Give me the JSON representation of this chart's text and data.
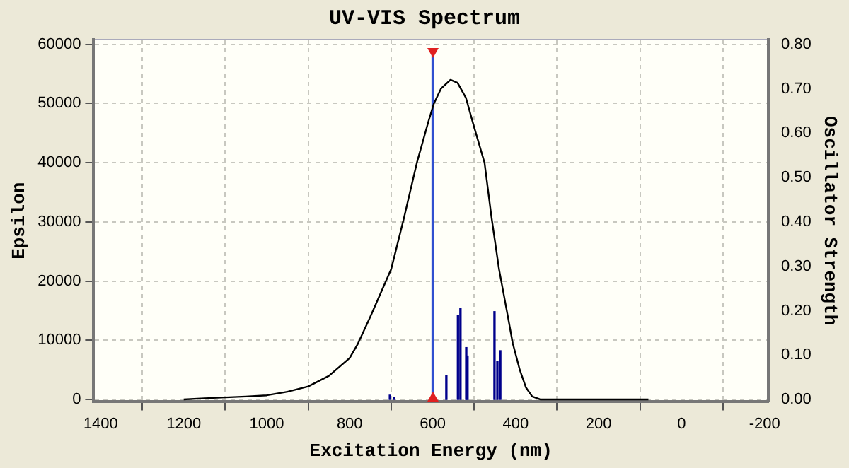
{
  "chart_data": {
    "type": "line",
    "title": "UV-VIS Spectrum",
    "xlabel": "Excitation Energy (nm)",
    "ylabel": "Epsilon",
    "y2label": "Oscillator Strength",
    "xlim": [
      1417,
      -209
    ],
    "xticks": [
      1400,
      1200,
      1000,
      800,
      600,
      400,
      200,
      0,
      -200
    ],
    "ylim": [
      -400,
      60800
    ],
    "yticks": [
      0,
      10000,
      20000,
      30000,
      40000,
      50000,
      60000
    ],
    "y2lim": [
      -0.0053,
      0.8107
    ],
    "y2ticks": [
      {
        "value": 0,
        "label": "0.00"
      },
      {
        "value": 0.1,
        "label": "0.10"
      },
      {
        "value": 0.2,
        "label": "0.20"
      },
      {
        "value": 0.3,
        "label": "0.30"
      },
      {
        "value": 0.4,
        "label": "0.40"
      },
      {
        "value": 0.5,
        "label": "0.50"
      },
      {
        "value": 0.6,
        "label": "0.60"
      },
      {
        "value": 0.7,
        "label": "0.70"
      },
      {
        "value": 0.8,
        "label": "0.80"
      }
    ],
    "grid": true,
    "legend": false,
    "marker": "none",
    "line_style": "solid",
    "series": [
      {
        "color": "#000000",
        "x": [
          1200,
          1150,
          1050,
          1000,
          950,
          900,
          850,
          800,
          781,
          750,
          700,
          669,
          638,
          610,
          597,
          580,
          557,
          540,
          520,
          500,
          475,
          458,
          440,
          420,
          407,
          390,
          375,
          360,
          340,
          80
        ],
        "values": [
          0,
          200,
          500,
          700,
          1300,
          2200,
          4000,
          7000,
          9300,
          14000,
          22000,
          30700,
          40000,
          47000,
          50000,
          52500,
          54000,
          53500,
          51000,
          46000,
          40000,
          30700,
          22000,
          14500,
          9500,
          5000,
          2000,
          500,
          0,
          0
        ]
      },
      {
        "type": "bar",
        "axis": "y2",
        "colors": [
          "#00008b",
          "#00008b",
          "#3050d0",
          "#00008b",
          "#00008b",
          "#00008b",
          "#00008b",
          "#00008b",
          "#00008b",
          "#00008b",
          "#00008b"
        ],
        "x": [
          703,
          693,
          600,
          567,
          539,
          533,
          519,
          516,
          451,
          444,
          437
        ],
        "values": [
          0.01,
          0.005,
          0.78,
          0.055,
          0.19,
          0.205,
          0.117,
          0.098,
          0.198,
          0.085,
          0.11
        ]
      }
    ]
  }
}
